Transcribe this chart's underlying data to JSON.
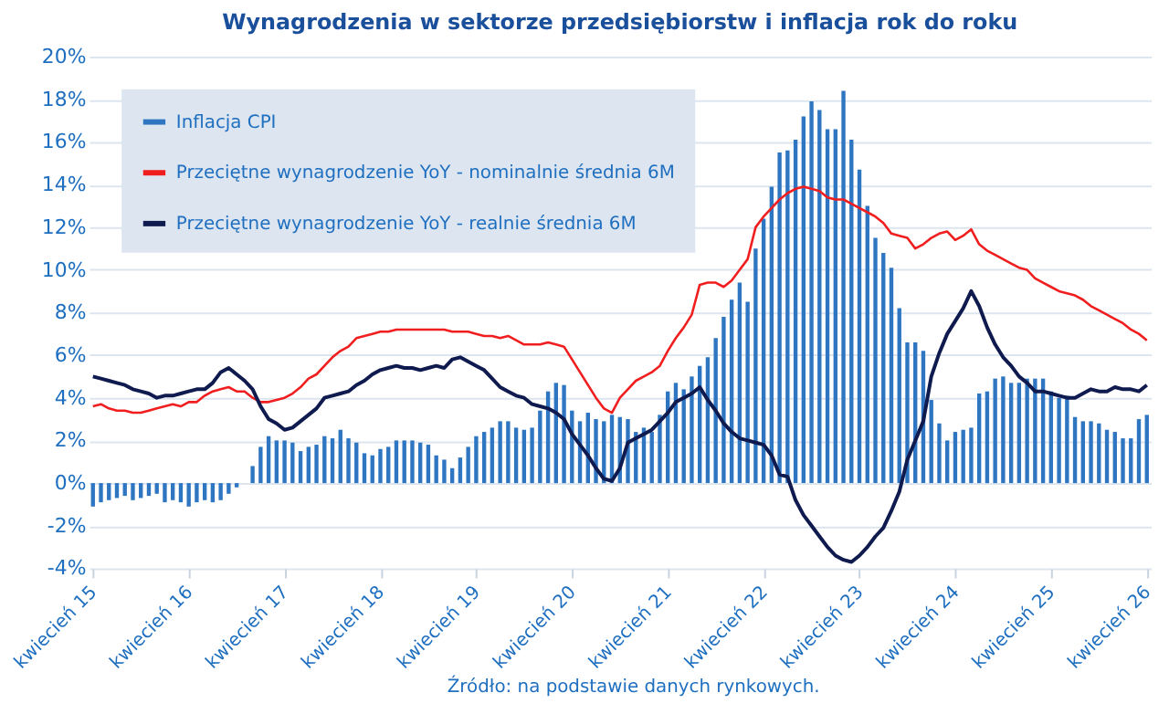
{
  "chart_data": {
    "type": "bar",
    "title": "Wynagrodzenia w sektorze przedsiębiorstw i inflacja rok do roku",
    "categories": [
      "kwiecień 15",
      null,
      null,
      null,
      null,
      null,
      null,
      null,
      null,
      null,
      null,
      null,
      "kwiecień 16",
      null,
      null,
      null,
      null,
      null,
      null,
      null,
      null,
      null,
      null,
      null,
      "kwiecień 17",
      null,
      null,
      null,
      null,
      null,
      null,
      null,
      null,
      null,
      null,
      null,
      "kwiecień 18",
      null,
      null,
      null,
      null,
      null,
      null,
      null,
      null,
      null,
      null,
      null,
      "kwiecień 19",
      null,
      null,
      null,
      null,
      null,
      null,
      null,
      null,
      null,
      null,
      null,
      "kwiecień 20",
      null,
      null,
      null,
      null,
      null,
      null,
      null,
      null,
      null,
      null,
      null,
      "kwiecień 21",
      null,
      null,
      null,
      null,
      null,
      null,
      null,
      null,
      null,
      null,
      null,
      "kwiecień 22",
      null,
      null,
      null,
      null,
      null,
      null,
      null,
      null,
      null,
      null,
      null,
      "kwiecień 23",
      null,
      null,
      null,
      null,
      null,
      null,
      null,
      null,
      null,
      null,
      null,
      "kwiecień 24",
      null,
      null,
      null,
      null,
      null,
      null,
      null,
      null,
      null,
      null,
      null,
      "kwiecień 25",
      null,
      null,
      null,
      null,
      null,
      null,
      null,
      null,
      null,
      null,
      null,
      "kwiecień 26"
    ],
    "series": [
      {
        "name": "Inflacja CPI",
        "color": "#2e75c2",
        "values": [
          -1.1,
          -0.9,
          -0.8,
          -0.7,
          -0.6,
          -0.8,
          -0.7,
          -0.6,
          -0.5,
          -0.9,
          -0.8,
          -0.9,
          -1.1,
          -0.9,
          -0.8,
          -0.9,
          -0.8,
          -0.5,
          -0.2,
          0.0,
          0.8,
          1.7,
          2.2,
          2.0,
          2.0,
          1.9,
          1.5,
          1.7,
          1.8,
          2.2,
          2.1,
          2.5,
          2.1,
          1.9,
          1.4,
          1.3,
          1.6,
          1.7,
          2.0,
          2.0,
          2.0,
          1.9,
          1.8,
          1.3,
          1.1,
          0.7,
          1.2,
          1.7,
          2.2,
          2.4,
          2.6,
          2.9,
          2.9,
          2.6,
          2.5,
          2.6,
          3.4,
          4.3,
          4.7,
          4.6,
          3.4,
          2.9,
          3.3,
          3.0,
          2.9,
          3.2,
          3.1,
          3.0,
          2.4,
          2.6,
          2.4,
          3.2,
          4.3,
          4.7,
          4.4,
          5.0,
          5.5,
          5.9,
          6.8,
          7.8,
          8.6,
          9.4,
          8.5,
          11.0,
          12.4,
          13.9,
          15.5,
          15.6,
          16.1,
          17.2,
          17.9,
          17.5,
          16.6,
          16.6,
          18.4,
          16.1,
          14.7,
          13.0,
          11.5,
          10.8,
          10.1,
          8.2,
          6.6,
          6.6,
          6.2,
          3.9,
          2.8,
          2.0,
          2.4,
          2.5,
          2.6,
          4.2,
          4.3,
          4.9,
          5.0,
          4.7,
          4.7,
          4.9,
          4.9,
          4.9,
          4.3,
          4.0,
          4.1,
          3.1,
          2.9,
          2.9,
          2.8,
          2.5,
          2.4,
          2.1,
          2.1,
          3.0,
          3.2
        ]
      },
      {
        "name": "Przeciętne wynagrodzenie YoY - nominalnie średnia 6M",
        "type": "line",
        "color": "#f01e1e",
        "values": [
          3.6,
          3.7,
          3.5,
          3.4,
          3.4,
          3.3,
          3.3,
          3.4,
          3.5,
          3.6,
          3.7,
          3.6,
          3.8,
          3.8,
          4.1,
          4.3,
          4.4,
          4.5,
          4.3,
          4.3,
          4.0,
          3.8,
          3.8,
          3.9,
          4.0,
          4.2,
          4.5,
          4.9,
          5.1,
          5.5,
          5.9,
          6.2,
          6.4,
          6.8,
          6.9,
          7.0,
          7.1,
          7.1,
          7.2,
          7.2,
          7.2,
          7.2,
          7.2,
          7.2,
          7.2,
          7.1,
          7.1,
          7.1,
          7.0,
          6.9,
          6.9,
          6.8,
          6.9,
          6.7,
          6.5,
          6.5,
          6.5,
          6.6,
          6.5,
          6.4,
          5.8,
          5.2,
          4.6,
          4.0,
          3.5,
          3.3,
          4.0,
          4.4,
          4.8,
          5.0,
          5.2,
          5.5,
          6.2,
          6.8,
          7.3,
          7.9,
          9.3,
          9.4,
          9.4,
          9.2,
          9.5,
          10.0,
          10.5,
          12.0,
          12.5,
          12.9,
          13.3,
          13.6,
          13.8,
          13.9,
          13.8,
          13.7,
          13.4,
          13.3,
          13.3,
          13.1,
          12.9,
          12.7,
          12.5,
          12.2,
          11.7,
          11.6,
          11.5,
          11.0,
          11.2,
          11.5,
          11.7,
          11.8,
          11.4,
          11.6,
          11.9,
          11.2,
          10.9,
          10.7,
          10.5,
          10.3,
          10.1,
          10.0,
          9.6,
          9.4,
          9.2,
          9.0,
          8.9,
          8.8,
          8.6,
          8.3,
          8.1,
          7.9,
          7.7,
          7.5,
          7.2,
          7.0,
          6.7
        ]
      },
      {
        "name": "Przeciętne wynagrodzenie YoY - realnie średnia 6M",
        "type": "line",
        "color": "#0f1a4f",
        "values": [
          5.0,
          4.9,
          4.8,
          4.7,
          4.6,
          4.4,
          4.3,
          4.2,
          4.0,
          4.1,
          4.1,
          4.2,
          4.3,
          4.4,
          4.4,
          4.7,
          5.2,
          5.4,
          5.1,
          4.8,
          4.4,
          3.6,
          3.0,
          2.8,
          2.5,
          2.6,
          2.9,
          3.2,
          3.5,
          4.0,
          4.1,
          4.2,
          4.3,
          4.6,
          4.8,
          5.1,
          5.3,
          5.4,
          5.5,
          5.4,
          5.4,
          5.3,
          5.4,
          5.5,
          5.4,
          5.8,
          5.9,
          5.7,
          5.5,
          5.3,
          4.9,
          4.5,
          4.3,
          4.1,
          4.0,
          3.7,
          3.6,
          3.5,
          3.3,
          3.0,
          2.3,
          1.8,
          1.3,
          0.7,
          0.2,
          0.1,
          0.7,
          1.9,
          2.1,
          2.3,
          2.5,
          2.9,
          3.3,
          3.8,
          4.0,
          4.2,
          4.5,
          3.9,
          3.4,
          2.8,
          2.4,
          2.1,
          2.0,
          1.9,
          1.8,
          1.3,
          0.4,
          0.3,
          -0.8,
          -1.5,
          -2.0,
          -2.5,
          -3.0,
          -3.4,
          -3.6,
          -3.7,
          -3.4,
          -3.0,
          -2.5,
          -2.1,
          -1.3,
          -0.4,
          1.1,
          2.0,
          2.9,
          5.0,
          6.1,
          7.0,
          7.6,
          8.2,
          9.0,
          8.3,
          7.3,
          6.5,
          5.9,
          5.5,
          5.0,
          4.7,
          4.3,
          4.3,
          4.2,
          4.1,
          4.0,
          4.0,
          4.2,
          4.4,
          4.3,
          4.3,
          4.5,
          4.4,
          4.4,
          4.3,
          4.6
        ]
      }
    ],
    "ylim": [
      -4,
      20
    ],
    "yticks": [
      {
        "value": -4,
        "label": "-4%"
      },
      {
        "value": -2,
        "label": "-2%"
      },
      {
        "value": 0,
        "label": "0%"
      },
      {
        "value": 2,
        "label": "2%"
      },
      {
        "value": 4,
        "label": "4%"
      },
      {
        "value": 6,
        "label": "6%"
      },
      {
        "value": 8,
        "label": "8%"
      },
      {
        "value": 10,
        "label": "10%"
      },
      {
        "value": 12,
        "label": "12%"
      },
      {
        "value": 14,
        "label": "14%"
      },
      {
        "value": 16,
        "label": "16%"
      },
      {
        "value": 18,
        "label": "18%"
      },
      {
        "value": 20,
        "label": "20%"
      }
    ],
    "grid": "y",
    "legend": "top left",
    "annotations": [
      "Źródło: na podstawie danych rynkowych."
    ]
  }
}
